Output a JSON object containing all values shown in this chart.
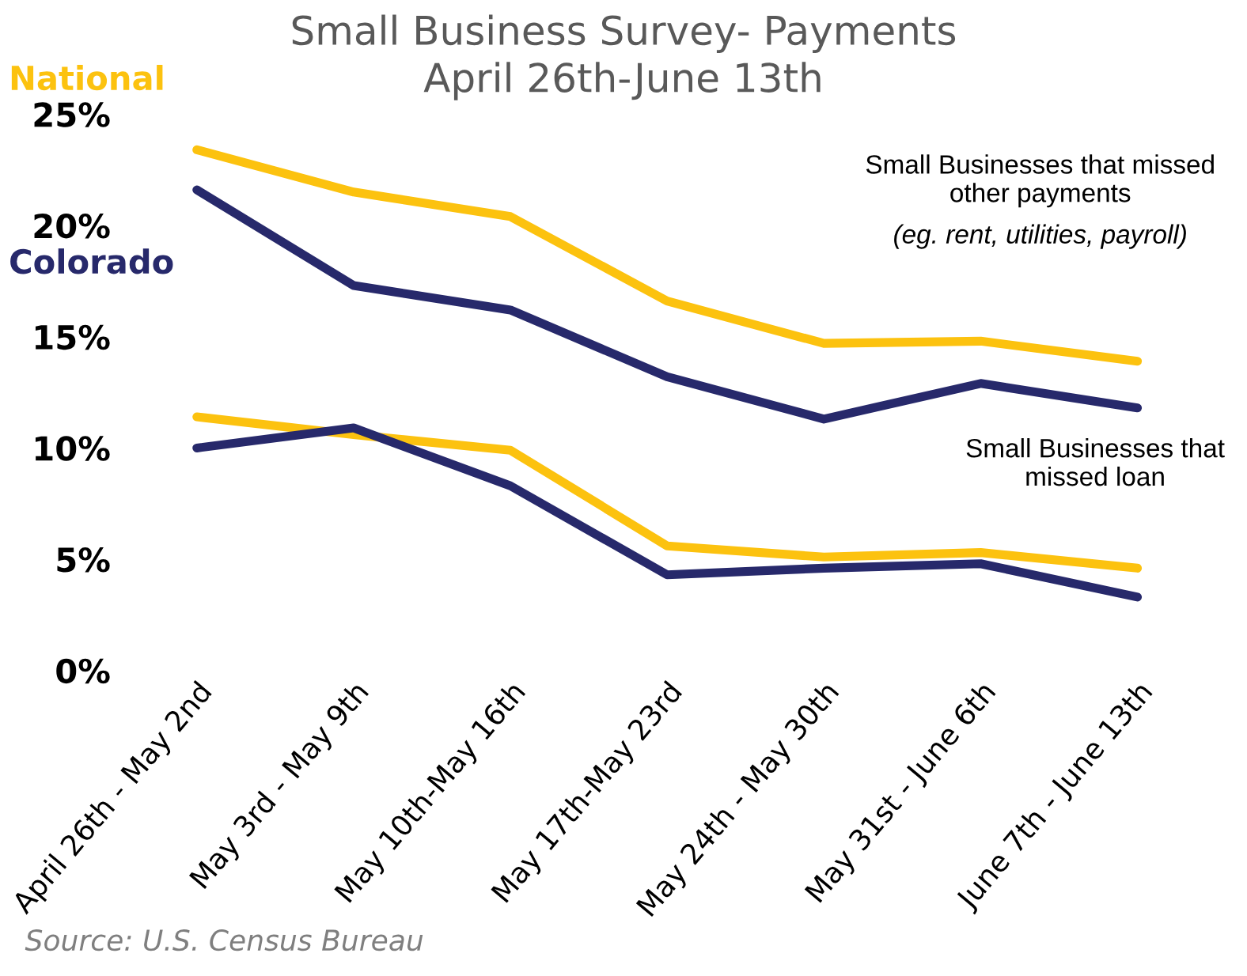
{
  "chart_data": {
    "type": "line",
    "title": "Small Business Survey- Payments\nApril 26th-June 13th",
    "categories": [
      "April 26th - May 2nd",
      "May 3rd - May 9th",
      "May 10th-May 16th",
      "May 17th-May 23rd",
      "May 24th - May 30th",
      "May 31st - June 6th",
      "June 7th - June 13th"
    ],
    "series": [
      {
        "name": "National",
        "color": "#fcc20f",
        "values": [
          23.4,
          21.5,
          20.4,
          16.6,
          14.7,
          14.8,
          13.9
        ]
      },
      {
        "name": "Colorado",
        "color": "#27296b",
        "values": [
          21.6,
          17.3,
          16.2,
          13.2,
          11.3,
          12.9,
          11.8
        ]
      },
      {
        "color": "#fcc20f",
        "values": [
          11.4,
          10.6,
          9.9,
          5.6,
          5.1,
          5.3,
          4.6
        ]
      },
      {
        "color": "#27296b",
        "values": [
          10.0,
          10.9,
          8.3,
          4.3,
          4.6,
          4.8,
          3.3
        ]
      }
    ],
    "ylim": [
      0,
      25
    ],
    "yticks": [
      {
        "value": 0,
        "label": "0%"
      },
      {
        "value": 5,
        "label": "5%"
      },
      {
        "value": 10,
        "label": "10%"
      },
      {
        "value": 15,
        "label": "15%"
      },
      {
        "value": 20,
        "label": "20%"
      },
      {
        "value": 25,
        "label": "25%"
      }
    ],
    "annotations": [
      "Small Businesses that missed other payments",
      "(eg. rent, utilities, payroll)",
      "Small Businesses that missed loan",
      "Source: U.S. Census Bureau"
    ],
    "grid": false,
    "legend": false,
    "marker": "none",
    "line_style": "solid"
  }
}
